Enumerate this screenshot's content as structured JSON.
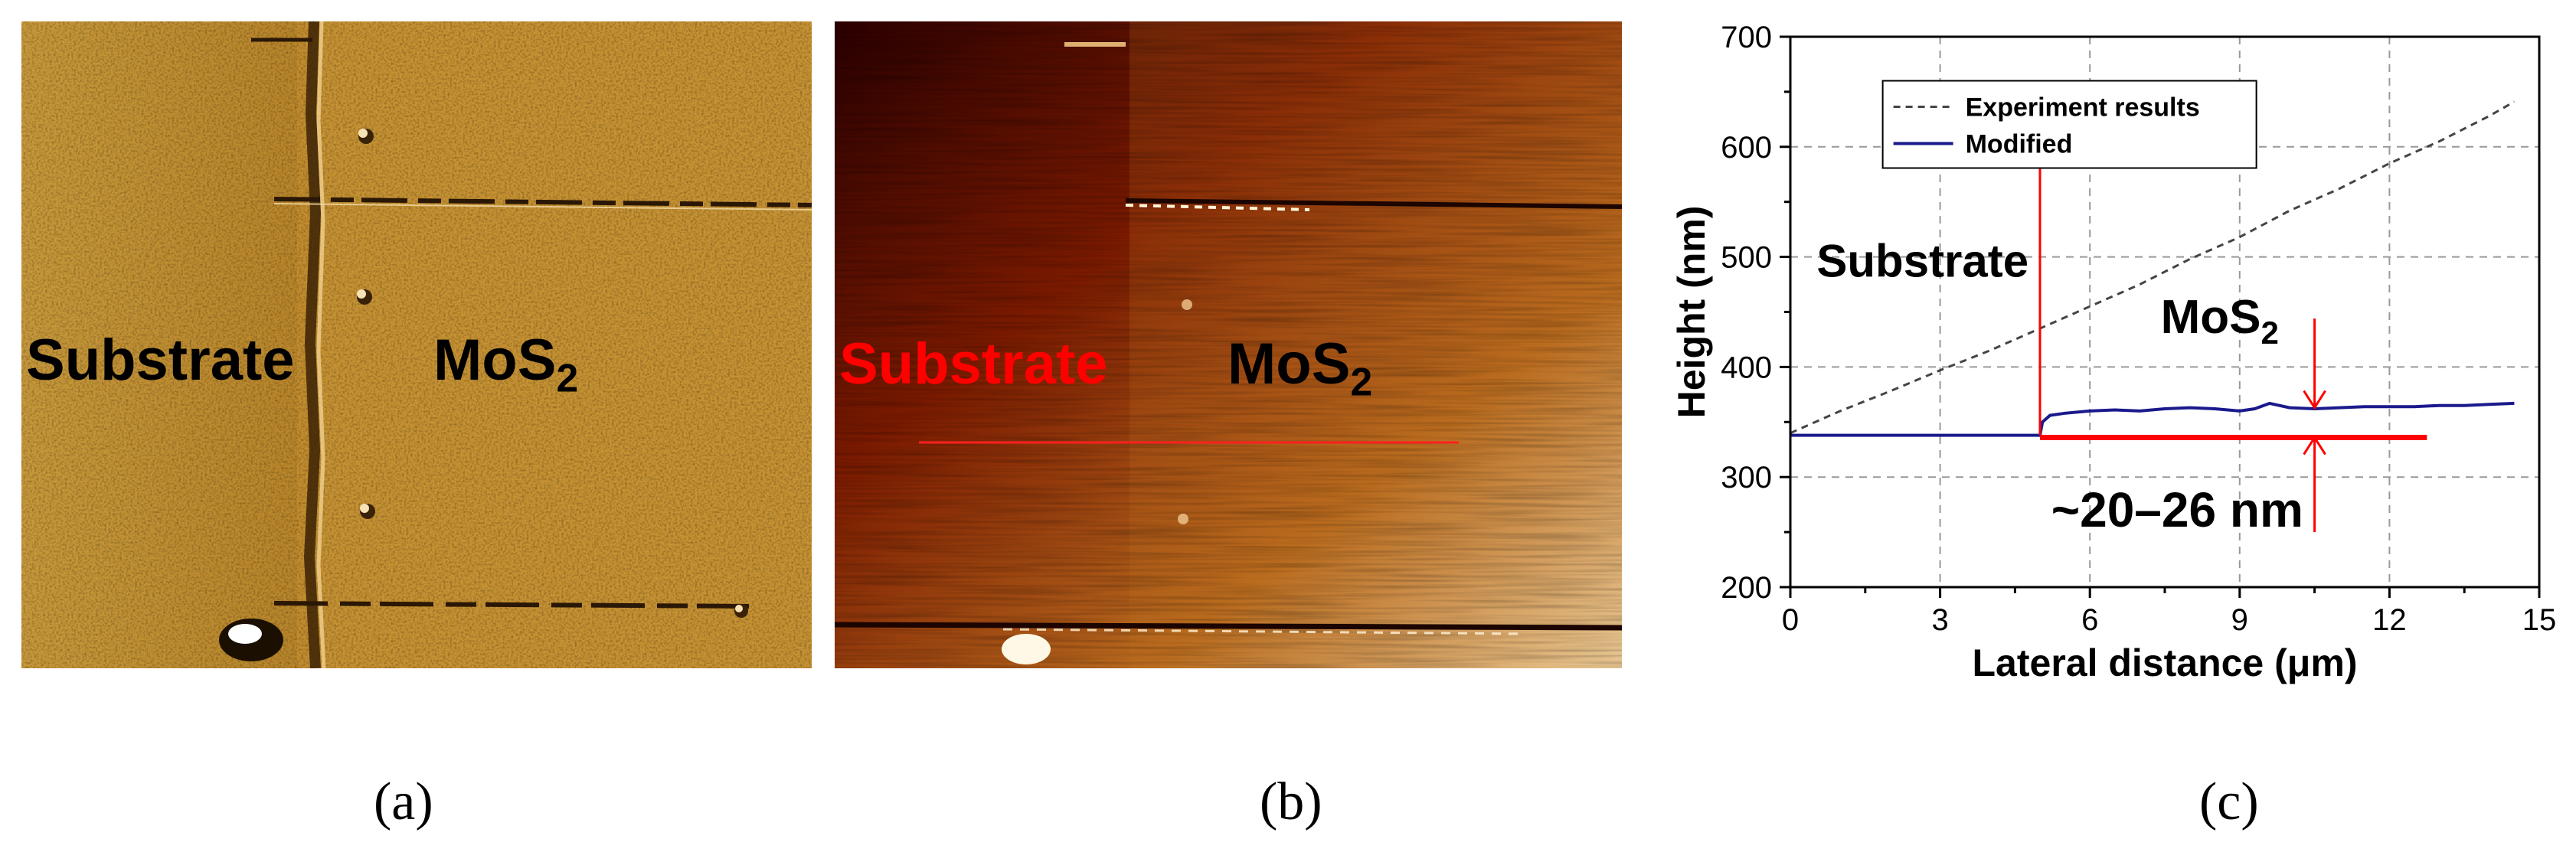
{
  "panels": {
    "a": {
      "caption": "(a)",
      "label_substrate": "Substrate",
      "label_mos2_main": "MoS",
      "label_mos2_sub": "2"
    },
    "b": {
      "caption": "(b)",
      "label_substrate": "Substrate",
      "label_mos2_main": "MoS",
      "label_mos2_sub": "2",
      "substrate_label_color": "#ff0000"
    },
    "c": {
      "caption": "(c)"
    }
  },
  "colors": {
    "afm_amplitude": "#c08a2c",
    "afm_height_dark": "#3a0000",
    "afm_height_light": "#f0d8a8",
    "modified_line": "#1a1a8c",
    "experiment_line": "#444444",
    "annotation": "#ff0000"
  },
  "chart_data": {
    "type": "line",
    "xlabel": "Lateral distance (μm)",
    "ylabel": "Height (nm)",
    "xlim": [
      0,
      15
    ],
    "ylim": [
      200,
      700
    ],
    "xticks": [
      0,
      3,
      6,
      9,
      12,
      15
    ],
    "yticks": [
      200,
      300,
      400,
      500,
      600,
      700
    ],
    "grid": "dashed",
    "legend_position": "top-left",
    "series": [
      {
        "name": "Experiment results",
        "style": "dashed",
        "x": [
          0,
          1,
          2,
          3,
          4,
          5,
          6,
          7,
          8,
          9,
          10,
          11,
          12,
          13,
          14,
          14.5
        ],
        "y": [
          340,
          360,
          378,
          397,
          415,
          435,
          455,
          475,
          498,
          518,
          542,
          562,
          585,
          605,
          628,
          641
        ]
      },
      {
        "name": "Modified",
        "style": "solid",
        "x": [
          0,
          5.0,
          5.05,
          5.2,
          5.5,
          6,
          6.5,
          7,
          7.5,
          8,
          8.5,
          9,
          9.3,
          9.6,
          10,
          10.5,
          11,
          11.5,
          12,
          12.5,
          13,
          13.5,
          14,
          14.5
        ],
        "y": [
          338,
          338,
          350,
          356,
          358,
          360,
          361,
          360,
          362,
          363,
          362,
          360,
          362,
          367,
          363,
          362,
          363,
          364,
          364,
          364,
          365,
          365,
          366,
          367
        ]
      }
    ],
    "annotations": {
      "substrate_label": "Substrate",
      "mos2_label_main": "MoS",
      "mos2_label_sub": "2",
      "thickness_label": "~20–26 nm",
      "vertical_marker_x": 5.0,
      "baseline_y": 338,
      "baseline_x_end": 12.75,
      "arrow_x": 10.5,
      "arrow_upper_y": 363,
      "arrow_lower_y": 338
    }
  }
}
